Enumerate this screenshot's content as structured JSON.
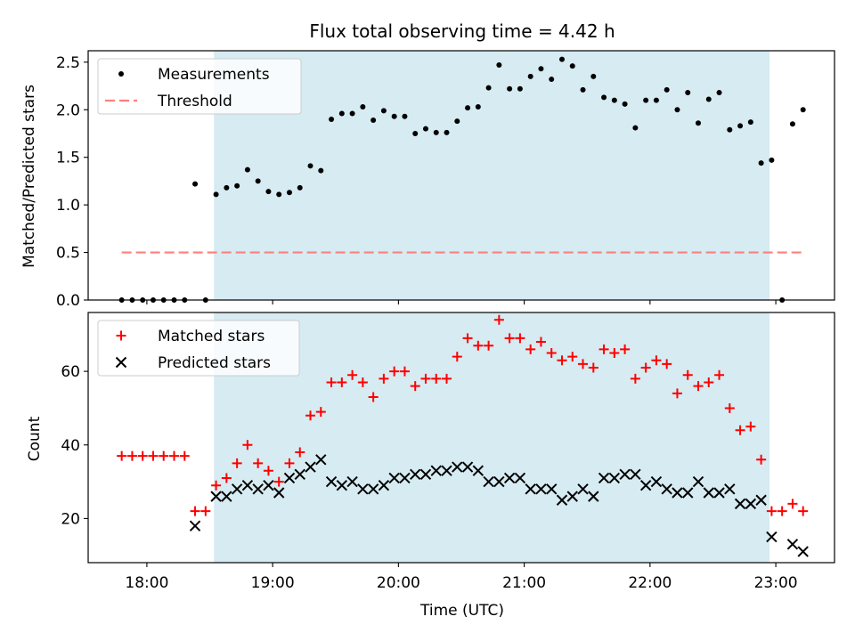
{
  "chart_data": [
    {
      "type": "scatter",
      "title": "Flux total observing time = 4.42 h",
      "xlabel": "",
      "ylabel": "Matched/Predicted stars",
      "xlim": [
        "17:32",
        "23:28"
      ],
      "ylim": [
        0,
        2.62
      ],
      "yticks": [
        "0.0",
        "0.5",
        "1.0",
        "1.5",
        "2.0",
        "2.5"
      ],
      "legend_position": "upper-left",
      "shaded_interval": {
        "start": "18:32",
        "end": "22:57",
        "color": "#add8e6"
      },
      "series": [
        {
          "name": "Measurements",
          "marker": "dot",
          "color": "#000000",
          "points": [
            [
              "17:48",
              0
            ],
            [
              "17:53",
              0
            ],
            [
              "17:58",
              0
            ],
            [
              "18:03",
              0
            ],
            [
              "18:08",
              0
            ],
            [
              "18:13",
              0
            ],
            [
              "18:18",
              0
            ],
            [
              "18:23",
              1.22
            ],
            [
              "18:28",
              0
            ],
            [
              "18:33",
              1.11
            ],
            [
              "18:38",
              1.18
            ],
            [
              "18:43",
              1.2
            ],
            [
              "18:48",
              1.37
            ],
            [
              "18:53",
              1.25
            ],
            [
              "18:58",
              1.14
            ],
            [
              "19:03",
              1.11
            ],
            [
              "19:08",
              1.13
            ],
            [
              "19:13",
              1.18
            ],
            [
              "19:18",
              1.41
            ],
            [
              "19:23",
              1.36
            ],
            [
              "19:28",
              1.9
            ],
            [
              "19:33",
              1.96
            ],
            [
              "19:38",
              1.96
            ],
            [
              "19:43",
              2.03
            ],
            [
              "19:48",
              1.89
            ],
            [
              "19:53",
              1.99
            ],
            [
              "19:58",
              1.93
            ],
            [
              "20:03",
              1.93
            ],
            [
              "20:08",
              1.75
            ],
            [
              "20:13",
              1.8
            ],
            [
              "20:18",
              1.76
            ],
            [
              "20:23",
              1.76
            ],
            [
              "20:28",
              1.88
            ],
            [
              "20:33",
              2.02
            ],
            [
              "20:38",
              2.03
            ],
            [
              "20:43",
              2.23
            ],
            [
              "20:48",
              2.47
            ],
            [
              "20:53",
              2.22
            ],
            [
              "20:58",
              2.22
            ],
            [
              "21:03",
              2.35
            ],
            [
              "21:08",
              2.43
            ],
            [
              "21:13",
              2.32
            ],
            [
              "21:18",
              2.53
            ],
            [
              "21:23",
              2.46
            ],
            [
              "21:28",
              2.21
            ],
            [
              "21:33",
              2.35
            ],
            [
              "21:38",
              2.13
            ],
            [
              "21:43",
              2.1
            ],
            [
              "21:48",
              2.06
            ],
            [
              "21:53",
              1.81
            ],
            [
              "21:58",
              2.1
            ],
            [
              "22:03",
              2.1
            ],
            [
              "22:08",
              2.21
            ],
            [
              "22:13",
              2.0
            ],
            [
              "22:18",
              2.18
            ],
            [
              "22:23",
              1.86
            ],
            [
              "22:28",
              2.11
            ],
            [
              "22:33",
              2.18
            ],
            [
              "22:38",
              1.79
            ],
            [
              "22:43",
              1.83
            ],
            [
              "22:48",
              1.87
            ],
            [
              "22:53",
              1.44
            ],
            [
              "22:58",
              1.47
            ],
            [
              "23:03",
              0
            ],
            [
              "23:08",
              1.85
            ],
            [
              "23:13",
              2.0
            ]
          ]
        },
        {
          "name": "Threshold",
          "marker": "dashed-line",
          "color": "#ff7f7f",
          "points": [
            [
              "17:48",
              0.5
            ],
            [
              "23:13",
              0.5
            ]
          ]
        }
      ]
    },
    {
      "type": "scatter",
      "title": "",
      "xlabel": "Time (UTC)",
      "ylabel": "Count",
      "xlim": [
        "17:32",
        "23:28"
      ],
      "xticks": [
        "18:00",
        "19:00",
        "20:00",
        "21:00",
        "22:00",
        "23:00"
      ],
      "ylim": [
        8,
        76
      ],
      "yticks": [
        "20",
        "40",
        "60"
      ],
      "legend_position": "upper-left",
      "shaded_interval": {
        "start": "18:32",
        "end": "22:57",
        "color": "#add8e6"
      },
      "series": [
        {
          "name": "Matched stars",
          "marker": "plus",
          "color": "#ff0000",
          "points": [
            [
              "17:48",
              37
            ],
            [
              "17:53",
              37
            ],
            [
              "17:58",
              37
            ],
            [
              "18:03",
              37
            ],
            [
              "18:08",
              37
            ],
            [
              "18:13",
              37
            ],
            [
              "18:18",
              37
            ],
            [
              "18:23",
              22
            ],
            [
              "18:28",
              22
            ],
            [
              "18:33",
              29
            ],
            [
              "18:38",
              31
            ],
            [
              "18:43",
              35
            ],
            [
              "18:48",
              40
            ],
            [
              "18:53",
              35
            ],
            [
              "18:58",
              33
            ],
            [
              "19:03",
              30
            ],
            [
              "19:08",
              35
            ],
            [
              "19:13",
              38
            ],
            [
              "19:18",
              48
            ],
            [
              "19:23",
              49
            ],
            [
              "19:28",
              57
            ],
            [
              "19:33",
              57
            ],
            [
              "19:38",
              59
            ],
            [
              "19:43",
              57
            ],
            [
              "19:48",
              53
            ],
            [
              "19:53",
              58
            ],
            [
              "19:58",
              60
            ],
            [
              "20:03",
              60
            ],
            [
              "20:08",
              56
            ],
            [
              "20:13",
              58
            ],
            [
              "20:18",
              58
            ],
            [
              "20:23",
              58
            ],
            [
              "20:28",
              64
            ],
            [
              "20:33",
              69
            ],
            [
              "20:38",
              67
            ],
            [
              "20:43",
              67
            ],
            [
              "20:48",
              74
            ],
            [
              "20:53",
              69
            ],
            [
              "20:58",
              69
            ],
            [
              "21:03",
              66
            ],
            [
              "21:08",
              68
            ],
            [
              "21:13",
              65
            ],
            [
              "21:18",
              63
            ],
            [
              "21:23",
              64
            ],
            [
              "21:28",
              62
            ],
            [
              "21:33",
              61
            ],
            [
              "21:38",
              66
            ],
            [
              "21:43",
              65
            ],
            [
              "21:48",
              66
            ],
            [
              "21:53",
              58
            ],
            [
              "21:58",
              61
            ],
            [
              "22:03",
              63
            ],
            [
              "22:08",
              62
            ],
            [
              "22:13",
              54
            ],
            [
              "22:18",
              59
            ],
            [
              "22:23",
              56
            ],
            [
              "22:28",
              57
            ],
            [
              "22:33",
              59
            ],
            [
              "22:38",
              50
            ],
            [
              "22:43",
              44
            ],
            [
              "22:48",
              45
            ],
            [
              "22:53",
              36
            ],
            [
              "22:58",
              22
            ],
            [
              "23:03",
              22
            ],
            [
              "23:08",
              24
            ],
            [
              "23:13",
              22
            ]
          ]
        },
        {
          "name": "Predicted stars",
          "marker": "x",
          "color": "#000000",
          "points": [
            [
              "18:23",
              18
            ],
            [
              "18:33",
              26
            ],
            [
              "18:38",
              26
            ],
            [
              "18:43",
              28
            ],
            [
              "18:48",
              29
            ],
            [
              "18:53",
              28
            ],
            [
              "18:58",
              29
            ],
            [
              "19:03",
              27
            ],
            [
              "19:08",
              31
            ],
            [
              "19:13",
              32
            ],
            [
              "19:18",
              34
            ],
            [
              "19:23",
              36
            ],
            [
              "19:28",
              30
            ],
            [
              "19:33",
              29
            ],
            [
              "19:38",
              30
            ],
            [
              "19:43",
              28
            ],
            [
              "19:48",
              28
            ],
            [
              "19:53",
              29
            ],
            [
              "19:58",
              31
            ],
            [
              "20:03",
              31
            ],
            [
              "20:08",
              32
            ],
            [
              "20:13",
              32
            ],
            [
              "20:18",
              33
            ],
            [
              "20:23",
              33
            ],
            [
              "20:28",
              34
            ],
            [
              "20:33",
              34
            ],
            [
              "20:38",
              33
            ],
            [
              "20:43",
              30
            ],
            [
              "20:48",
              30
            ],
            [
              "20:53",
              31
            ],
            [
              "20:58",
              31
            ],
            [
              "21:03",
              28
            ],
            [
              "21:08",
              28
            ],
            [
              "21:13",
              28
            ],
            [
              "21:18",
              25
            ],
            [
              "21:23",
              26
            ],
            [
              "21:28",
              28
            ],
            [
              "21:33",
              26
            ],
            [
              "21:38",
              31
            ],
            [
              "21:43",
              31
            ],
            [
              "21:48",
              32
            ],
            [
              "21:53",
              32
            ],
            [
              "21:58",
              29
            ],
            [
              "22:03",
              30
            ],
            [
              "22:08",
              28
            ],
            [
              "22:13",
              27
            ],
            [
              "22:18",
              27
            ],
            [
              "22:23",
              30
            ],
            [
              "22:28",
              27
            ],
            [
              "22:33",
              27
            ],
            [
              "22:38",
              28
            ],
            [
              "22:43",
              24
            ],
            [
              "22:48",
              24
            ],
            [
              "22:53",
              25
            ],
            [
              "22:58",
              15
            ],
            [
              "23:08",
              13
            ],
            [
              "23:13",
              11
            ]
          ]
        }
      ]
    }
  ]
}
